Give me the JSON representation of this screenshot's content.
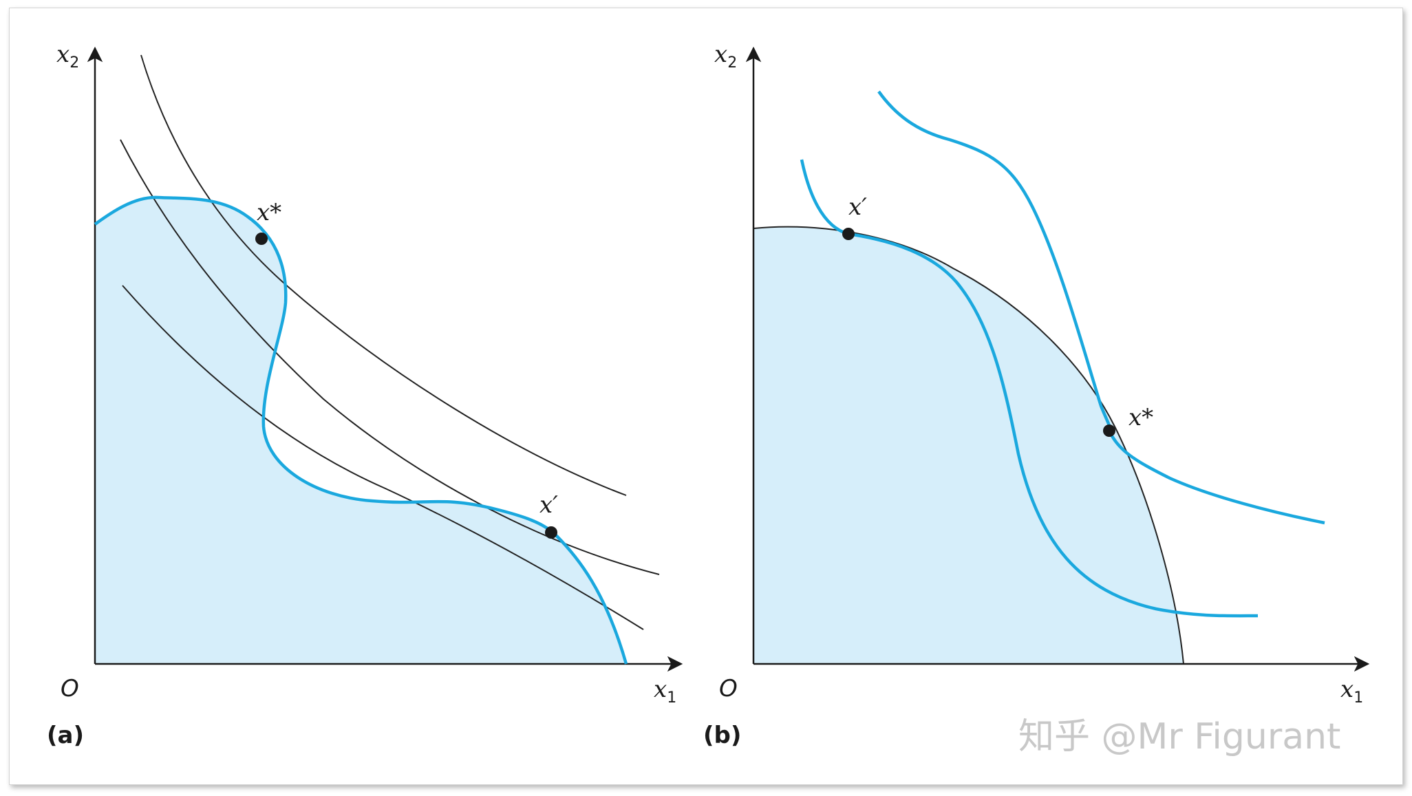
{
  "panels": [
    {
      "label": "(a)",
      "origin": "O",
      "x_axis": {
        "var": "x",
        "sub": "1"
      },
      "y_axis": {
        "var": "x",
        "sub": "2"
      },
      "points": {
        "optimum": "x*",
        "other": "x′"
      }
    },
    {
      "label": "(b)",
      "origin": "O",
      "x_axis": {
        "var": "x",
        "sub": "1"
      },
      "y_axis": {
        "var": "x",
        "sub": "2"
      },
      "points": {
        "other": "x′",
        "optimum": "x*"
      }
    }
  ],
  "watermark": "知乎 @Mr Figurant",
  "colors": {
    "feasible_fill": "#d6eefa",
    "curve_blue": "#1aa8de",
    "black": "#1a1a1a"
  }
}
